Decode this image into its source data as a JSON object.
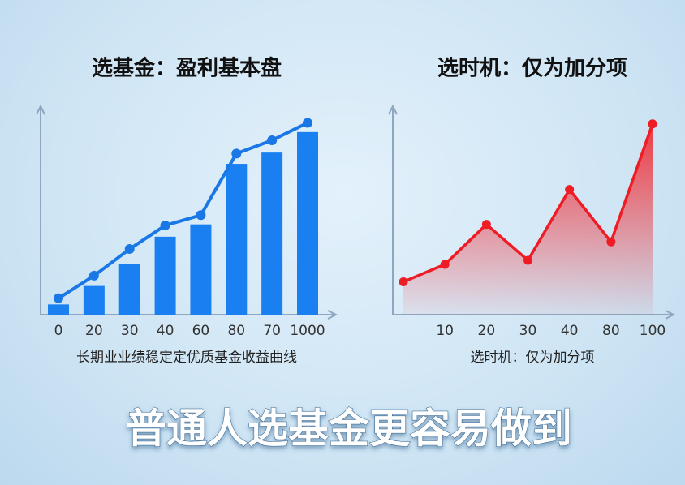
{
  "chart_data": [
    {
      "type": "bar",
      "title": "选基金：盈利基本盘",
      "x_label": "长期业业绩稳定定优质基金收益曲线",
      "categories": [
        "0",
        "20",
        "30",
        "40",
        "60",
        "80",
        "70",
        "1000"
      ],
      "ylim": [
        0,
        100
      ],
      "series": [
        {
          "type": "bar",
          "color": "#1a80f2",
          "values": [
            5,
            14,
            24.5,
            38,
            44,
            73.5,
            79,
            89
          ]
        },
        {
          "type": "line",
          "color": "#1a78e6",
          "values": [
            8,
            19,
            32,
            43.5,
            48.5,
            78.5,
            85,
            93.5
          ]
        }
      ]
    },
    {
      "type": "area",
      "title": "选时机：仅为加分项",
      "x_label": "选时机：仅为加分项",
      "categories": [
        null,
        "10",
        "20",
        "30",
        "40",
        "80",
        "100"
      ],
      "ylim": [
        0,
        100
      ],
      "series": [
        {
          "type": "area",
          "color": "#ee1c24",
          "values": [
            16,
            24.5,
            44,
            26.5,
            61,
            35.5,
            93
          ]
        }
      ]
    }
  ],
  "headline": "普通人选基金更容易做到"
}
